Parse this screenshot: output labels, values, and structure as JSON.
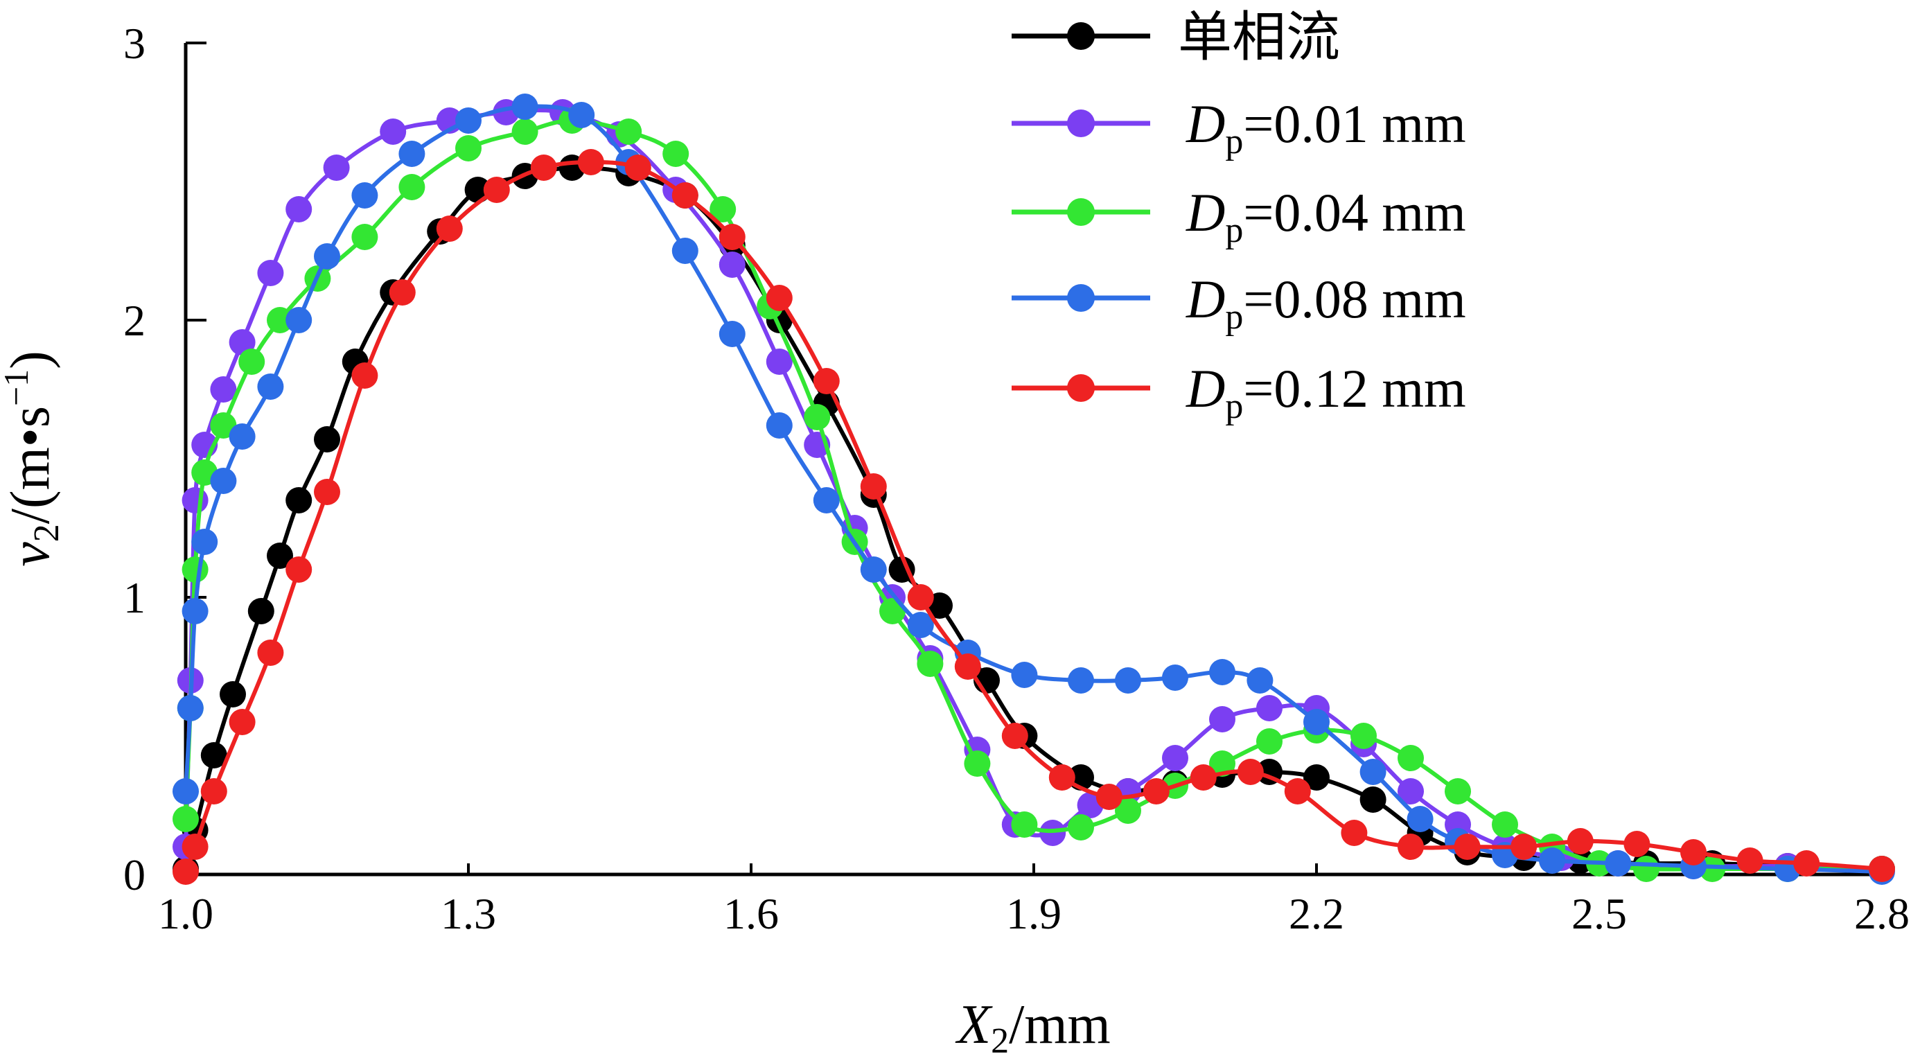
{
  "chart_data": {
    "type": "line",
    "xlabel": {
      "var": "X",
      "sub": "2",
      "unit": "/mm"
    },
    "ylabel": {
      "var": "v",
      "sub": "2",
      "unit_open": "/(m•s",
      "sup": "−1",
      "unit_close": ")"
    },
    "xlim": [
      1.0,
      2.8
    ],
    "ylim": [
      0,
      3
    ],
    "xticks": [
      "1.0",
      "1.3",
      "1.6",
      "1.9",
      "2.2",
      "2.5",
      "2.8"
    ],
    "yticks": [
      "0",
      "1",
      "2",
      "3"
    ],
    "grid": false,
    "legend_position": "top-right",
    "series": [
      {
        "name": "单相流",
        "legend": {
          "text": "单相流"
        },
        "color": "#000000",
        "points": [
          [
            1.0,
            0.02
          ],
          [
            1.01,
            0.16
          ],
          [
            1.03,
            0.43
          ],
          [
            1.05,
            0.65
          ],
          [
            1.08,
            0.95
          ],
          [
            1.1,
            1.15
          ],
          [
            1.12,
            1.35
          ],
          [
            1.15,
            1.57
          ],
          [
            1.18,
            1.85
          ],
          [
            1.22,
            2.1
          ],
          [
            1.27,
            2.32
          ],
          [
            1.31,
            2.47
          ],
          [
            1.36,
            2.52
          ],
          [
            1.41,
            2.55
          ],
          [
            1.47,
            2.53
          ],
          [
            1.53,
            2.45
          ],
          [
            1.58,
            2.27
          ],
          [
            1.63,
            2.0
          ],
          [
            1.68,
            1.7
          ],
          [
            1.73,
            1.37
          ],
          [
            1.76,
            1.1
          ],
          [
            1.8,
            0.97
          ],
          [
            1.85,
            0.7
          ],
          [
            1.89,
            0.5
          ],
          [
            1.95,
            0.35
          ],
          [
            2.0,
            0.3
          ],
          [
            2.05,
            0.33
          ],
          [
            2.1,
            0.36
          ],
          [
            2.15,
            0.37
          ],
          [
            2.2,
            0.35
          ],
          [
            2.26,
            0.27
          ],
          [
            2.31,
            0.15
          ],
          [
            2.36,
            0.08
          ],
          [
            2.42,
            0.06
          ],
          [
            2.48,
            0.05
          ],
          [
            2.55,
            0.04
          ],
          [
            2.62,
            0.04
          ],
          [
            2.7,
            0.03
          ],
          [
            2.8,
            0.02
          ]
        ]
      },
      {
        "name": "Dp=0.01 mm",
        "legend": {
          "var": "D",
          "sub": "p",
          "value": "=0.01 mm"
        },
        "color": "#7b3ff2",
        "points": [
          [
            1.0,
            0.1
          ],
          [
            1.005,
            0.7
          ],
          [
            1.01,
            1.35
          ],
          [
            1.02,
            1.55
          ],
          [
            1.04,
            1.75
          ],
          [
            1.06,
            1.92
          ],
          [
            1.09,
            2.17
          ],
          [
            1.12,
            2.4
          ],
          [
            1.16,
            2.55
          ],
          [
            1.22,
            2.68
          ],
          [
            1.28,
            2.72
          ],
          [
            1.34,
            2.75
          ],
          [
            1.4,
            2.75
          ],
          [
            1.46,
            2.67
          ],
          [
            1.52,
            2.47
          ],
          [
            1.58,
            2.2
          ],
          [
            1.63,
            1.85
          ],
          [
            1.67,
            1.55
          ],
          [
            1.71,
            1.25
          ],
          [
            1.75,
            1.0
          ],
          [
            1.79,
            0.78
          ],
          [
            1.84,
            0.45
          ],
          [
            1.88,
            0.18
          ],
          [
            1.92,
            0.15
          ],
          [
            1.96,
            0.25
          ],
          [
            2.0,
            0.3
          ],
          [
            2.05,
            0.42
          ],
          [
            2.1,
            0.56
          ],
          [
            2.15,
            0.6
          ],
          [
            2.2,
            0.6
          ],
          [
            2.25,
            0.47
          ],
          [
            2.3,
            0.3
          ],
          [
            2.35,
            0.18
          ],
          [
            2.4,
            0.1
          ],
          [
            2.46,
            0.06
          ],
          [
            2.52,
            0.04
          ],
          [
            2.6,
            0.03
          ],
          [
            2.7,
            0.03
          ],
          [
            2.8,
            0.02
          ]
        ]
      },
      {
        "name": "Dp=0.04 mm",
        "legend": {
          "var": "D",
          "sub": "p",
          "value": "=0.04 mm"
        },
        "color": "#33e633",
        "points": [
          [
            1.0,
            0.2
          ],
          [
            1.005,
            0.6
          ],
          [
            1.01,
            1.1
          ],
          [
            1.02,
            1.45
          ],
          [
            1.04,
            1.62
          ],
          [
            1.07,
            1.85
          ],
          [
            1.1,
            2.0
          ],
          [
            1.14,
            2.15
          ],
          [
            1.19,
            2.3
          ],
          [
            1.24,
            2.48
          ],
          [
            1.3,
            2.62
          ],
          [
            1.36,
            2.68
          ],
          [
            1.41,
            2.72
          ],
          [
            1.47,
            2.68
          ],
          [
            1.52,
            2.6
          ],
          [
            1.57,
            2.4
          ],
          [
            1.62,
            2.05
          ],
          [
            1.67,
            1.65
          ],
          [
            1.71,
            1.2
          ],
          [
            1.75,
            0.95
          ],
          [
            1.79,
            0.76
          ],
          [
            1.84,
            0.4
          ],
          [
            1.89,
            0.18
          ],
          [
            1.95,
            0.17
          ],
          [
            2.0,
            0.23
          ],
          [
            2.05,
            0.32
          ],
          [
            2.1,
            0.4
          ],
          [
            2.15,
            0.48
          ],
          [
            2.2,
            0.52
          ],
          [
            2.25,
            0.5
          ],
          [
            2.3,
            0.42
          ],
          [
            2.35,
            0.3
          ],
          [
            2.4,
            0.18
          ],
          [
            2.45,
            0.1
          ],
          [
            2.5,
            0.04
          ],
          [
            2.55,
            0.02
          ],
          [
            2.62,
            0.02
          ],
          [
            2.7,
            0.02
          ],
          [
            2.8,
            0.02
          ]
        ]
      },
      {
        "name": "Dp=0.08 mm",
        "legend": {
          "var": "D",
          "sub": "p",
          "value": "=0.08 mm"
        },
        "color": "#2d6ee6",
        "points": [
          [
            1.0,
            0.3
          ],
          [
            1.005,
            0.6
          ],
          [
            1.01,
            0.95
          ],
          [
            1.02,
            1.2
          ],
          [
            1.04,
            1.42
          ],
          [
            1.06,
            1.58
          ],
          [
            1.09,
            1.76
          ],
          [
            1.12,
            2.0
          ],
          [
            1.15,
            2.23
          ],
          [
            1.19,
            2.45
          ],
          [
            1.24,
            2.6
          ],
          [
            1.3,
            2.72
          ],
          [
            1.36,
            2.77
          ],
          [
            1.42,
            2.74
          ],
          [
            1.47,
            2.57
          ],
          [
            1.53,
            2.25
          ],
          [
            1.58,
            1.95
          ],
          [
            1.63,
            1.62
          ],
          [
            1.68,
            1.35
          ],
          [
            1.73,
            1.1
          ],
          [
            1.78,
            0.9
          ],
          [
            1.83,
            0.8
          ],
          [
            1.89,
            0.72
          ],
          [
            1.95,
            0.7
          ],
          [
            2.0,
            0.7
          ],
          [
            2.05,
            0.71
          ],
          [
            2.1,
            0.73
          ],
          [
            2.14,
            0.7
          ],
          [
            2.2,
            0.55
          ],
          [
            2.26,
            0.37
          ],
          [
            2.31,
            0.2
          ],
          [
            2.35,
            0.12
          ],
          [
            2.4,
            0.07
          ],
          [
            2.45,
            0.05
          ],
          [
            2.52,
            0.04
          ],
          [
            2.6,
            0.03
          ],
          [
            2.7,
            0.02
          ],
          [
            2.8,
            0.01
          ]
        ]
      },
      {
        "name": "Dp=0.12 mm",
        "legend": {
          "var": "D",
          "sub": "p",
          "value": "=0.12 mm"
        },
        "color": "#ee2222",
        "points": [
          [
            1.0,
            0.01
          ],
          [
            1.01,
            0.1
          ],
          [
            1.03,
            0.3
          ],
          [
            1.06,
            0.55
          ],
          [
            1.09,
            0.8
          ],
          [
            1.12,
            1.1
          ],
          [
            1.15,
            1.38
          ],
          [
            1.19,
            1.8
          ],
          [
            1.23,
            2.1
          ],
          [
            1.28,
            2.33
          ],
          [
            1.33,
            2.47
          ],
          [
            1.38,
            2.55
          ],
          [
            1.43,
            2.57
          ],
          [
            1.48,
            2.55
          ],
          [
            1.53,
            2.45
          ],
          [
            1.58,
            2.3
          ],
          [
            1.63,
            2.08
          ],
          [
            1.68,
            1.78
          ],
          [
            1.73,
            1.4
          ],
          [
            1.78,
            1.0
          ],
          [
            1.83,
            0.75
          ],
          [
            1.88,
            0.5
          ],
          [
            1.93,
            0.35
          ],
          [
            1.98,
            0.28
          ],
          [
            2.03,
            0.3
          ],
          [
            2.08,
            0.35
          ],
          [
            2.13,
            0.37
          ],
          [
            2.18,
            0.3
          ],
          [
            2.24,
            0.15
          ],
          [
            2.3,
            0.1
          ],
          [
            2.36,
            0.1
          ],
          [
            2.42,
            0.1
          ],
          [
            2.48,
            0.12
          ],
          [
            2.54,
            0.11
          ],
          [
            2.6,
            0.08
          ],
          [
            2.66,
            0.05
          ],
          [
            2.72,
            0.04
          ],
          [
            2.8,
            0.02
          ]
        ]
      }
    ]
  }
}
